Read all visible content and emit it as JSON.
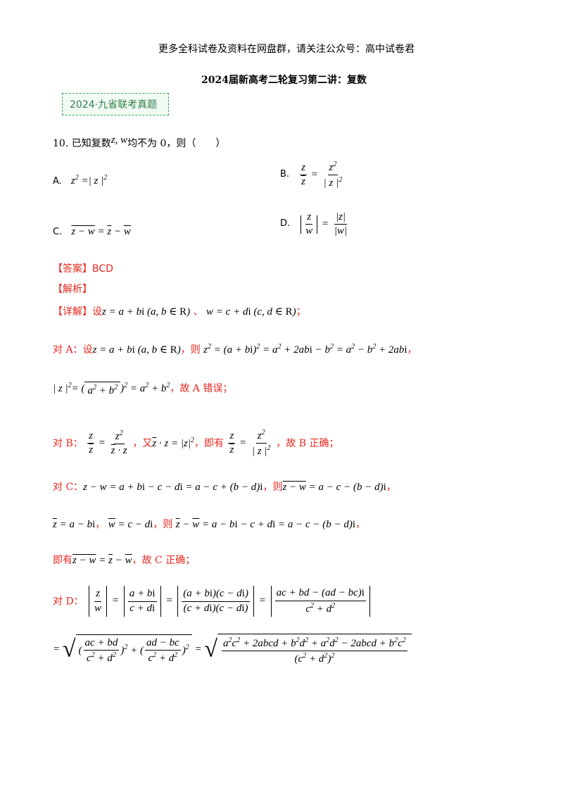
{
  "header": {
    "note": "更多全科试卷及资料在网盘群，请关注公众号：高中试卷君"
  },
  "doc": {
    "title": "2024届新高考二轮复习第二讲：复数"
  },
  "badge": {
    "label": "2024·九省联考真题"
  },
  "question": {
    "number": "10.",
    "stem_pre": "已知复数",
    "stem_vars": "z, w",
    "stem_post": "均不为 0，则（　　）",
    "options": {
      "a_label": "A.",
      "b_label": "B.",
      "c_label": "C.",
      "d_label": "D."
    }
  },
  "answer": {
    "label": "【答案】",
    "value": "BCD"
  },
  "analysis": {
    "label": "【解析】"
  },
  "detail": {
    "label": "【详解】",
    "set": "设",
    "sep": "、",
    "end": "；"
  },
  "part_a": {
    "label": "对 A：",
    "set": "设",
    "then": "，则",
    "end": "，",
    "conclusion": "，故 A 错误；"
  },
  "part_b": {
    "label": "对 B：",
    "also": "，又",
    "thus": "，即有",
    "conclusion": "，故 B 正确；"
  },
  "part_c": {
    "label": "对 C：",
    "then": "，则",
    "sep": "，",
    "then2": "，则",
    "end": "，",
    "thus": "即有",
    "conclusion": "，故 C 正确；"
  },
  "part_d": {
    "label": "对 D："
  }
}
